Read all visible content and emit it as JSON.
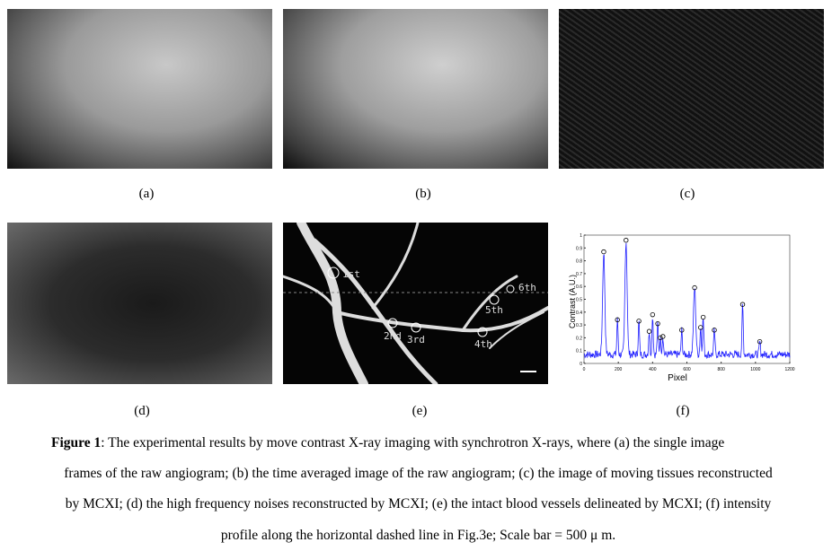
{
  "panels": {
    "a": "(a)",
    "b": "(b)",
    "c": "(c)",
    "d": "(d)",
    "e": "(e)",
    "f": "(f)"
  },
  "vessel_labels": [
    "1st",
    "2nd",
    "3rd",
    "4th",
    "5th",
    "6th"
  ],
  "caption": {
    "bold": "Figure 1",
    "lines": [
      ": The experimental results by move contrast X-ray imaging with synchrotron X-rays, where (a) the single image",
      "frames of the raw angiogram; (b) the time averaged image of the raw angiogram; (c) the image of moving tissues reconstructed",
      "by MCXI; (d) the high frequency noises reconstructed by MCXI; (e) the intact blood vessels delineated by MCXI; (f) intensity",
      "profile along the horizontal dashed line in Fig.3e; Scale bar = 500 μ m."
    ]
  },
  "chart_data": {
    "type": "line",
    "xlabel": "Pixel",
    "ylabel": "Contrast (A.U.)",
    "xlim": [
      0,
      1200
    ],
    "ylim": [
      0,
      1
    ],
    "xticks": [
      "0",
      "200",
      "400",
      "600",
      "800",
      "1000",
      "1200"
    ],
    "yticks": [
      "0",
      "0.1",
      "0.2",
      "0.3",
      "0.4",
      "0.5",
      "0.6",
      "0.7",
      "0.8",
      "0.9",
      "1"
    ],
    "line_color": "#1f1fff",
    "baseline": 0.07,
    "peaks": [
      {
        "x": 115,
        "y": 0.87
      },
      {
        "x": 195,
        "y": 0.34
      },
      {
        "x": 245,
        "y": 0.96
      },
      {
        "x": 320,
        "y": 0.33
      },
      {
        "x": 380,
        "y": 0.25
      },
      {
        "x": 400,
        "y": 0.38
      },
      {
        "x": 430,
        "y": 0.31
      },
      {
        "x": 445,
        "y": 0.2
      },
      {
        "x": 460,
        "y": 0.21
      },
      {
        "x": 570,
        "y": 0.26
      },
      {
        "x": 645,
        "y": 0.59
      },
      {
        "x": 680,
        "y": 0.28
      },
      {
        "x": 695,
        "y": 0.36
      },
      {
        "x": 760,
        "y": 0.26
      },
      {
        "x": 925,
        "y": 0.46
      },
      {
        "x": 1025,
        "y": 0.17
      }
    ]
  }
}
